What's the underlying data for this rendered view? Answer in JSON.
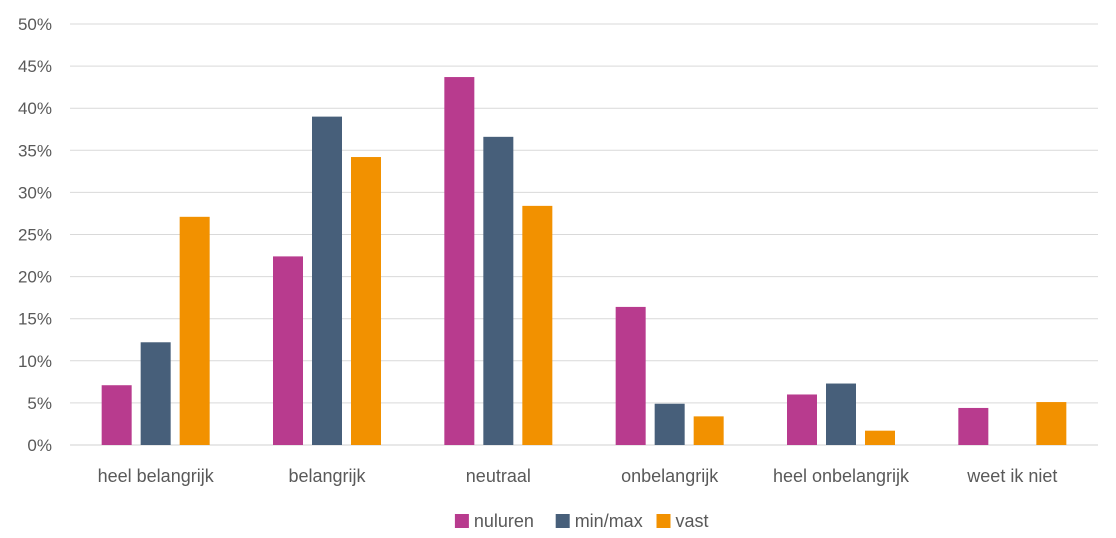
{
  "chart_data": {
    "type": "bar",
    "title": "",
    "xlabel": "",
    "ylabel": "",
    "ylim": [
      0,
      0.5
    ],
    "y_ticks": [
      "0%",
      "5%",
      "10%",
      "15%",
      "20%",
      "25%",
      "30%",
      "35%",
      "40%",
      "45%",
      "50%"
    ],
    "grid": true,
    "legend_position": "bottom",
    "categories": [
      "heel belangrijk",
      "belangrijk",
      "neutraal",
      "onbelangrijk",
      "heel onbelangrijk",
      "weet ik niet"
    ],
    "series": [
      {
        "name": "nuluren",
        "color": "#B83B8E",
        "values": [
          0.071,
          0.224,
          0.437,
          0.164,
          0.06,
          0.044
        ]
      },
      {
        "name": "min/max",
        "color": "#475F7A",
        "values": [
          0.122,
          0.39,
          0.366,
          0.049,
          0.073,
          0.0
        ]
      },
      {
        "name": "vast",
        "color": "#F29100",
        "values": [
          0.271,
          0.342,
          0.284,
          0.034,
          0.017,
          0.051
        ]
      }
    ]
  }
}
